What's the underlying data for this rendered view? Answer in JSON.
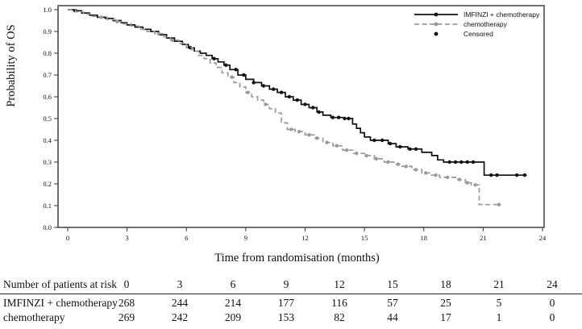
{
  "chart_data": {
    "type": "line",
    "subtype": "kaplan-meier-step",
    "title": "",
    "xlabel": "Time from randomisation (months)",
    "ylabel": "Probability of OS",
    "xlim": [
      0,
      24
    ],
    "ylim": [
      0.0,
      1.0
    ],
    "x_ticks": [
      0,
      3,
      6,
      9,
      12,
      15,
      18,
      21,
      24
    ],
    "y_ticks": [
      0.0,
      0.1,
      0.2,
      0.3,
      0.4,
      0.5,
      0.6,
      0.7,
      0.8,
      0.9,
      1.0
    ],
    "grid": false,
    "legend_position": "top-right-inside",
    "colors": {
      "imfinzi": "#111111",
      "chemo": "#999999",
      "frame": "#4d4d4d"
    },
    "series": [
      {
        "name": "IMFINZI + chemotherapy",
        "style": "solid",
        "color": "#111111",
        "points": [
          [
            0,
            1.0
          ],
          [
            0.3,
            0.995
          ],
          [
            0.7,
            0.985
          ],
          [
            1.1,
            0.975
          ],
          [
            1.5,
            0.965
          ],
          [
            1.9,
            0.96
          ],
          [
            2.3,
            0.95
          ],
          [
            2.7,
            0.94
          ],
          [
            3.0,
            0.93
          ],
          [
            3.4,
            0.92
          ],
          [
            3.8,
            0.91
          ],
          [
            4.2,
            0.9
          ],
          [
            4.6,
            0.885
          ],
          [
            5.0,
            0.87
          ],
          [
            5.4,
            0.855
          ],
          [
            5.8,
            0.84
          ],
          [
            6.1,
            0.825
          ],
          [
            6.4,
            0.81
          ],
          [
            6.7,
            0.8
          ],
          [
            7.0,
            0.79
          ],
          [
            7.3,
            0.775
          ],
          [
            7.6,
            0.76
          ],
          [
            7.9,
            0.745
          ],
          [
            8.2,
            0.725
          ],
          [
            8.6,
            0.7
          ],
          [
            9.0,
            0.68
          ],
          [
            9.4,
            0.665
          ],
          [
            9.8,
            0.65
          ],
          [
            10.2,
            0.635
          ],
          [
            10.6,
            0.62
          ],
          [
            11.0,
            0.6
          ],
          [
            11.4,
            0.585
          ],
          [
            11.8,
            0.565
          ],
          [
            12.2,
            0.55
          ],
          [
            12.6,
            0.53
          ],
          [
            12.9,
            0.515
          ],
          [
            13.3,
            0.505
          ],
          [
            14.0,
            0.5
          ],
          [
            14.4,
            0.475
          ],
          [
            14.6,
            0.455
          ],
          [
            14.8,
            0.435
          ],
          [
            15.0,
            0.415
          ],
          [
            15.3,
            0.4
          ],
          [
            16.2,
            0.385
          ],
          [
            16.6,
            0.37
          ],
          [
            17.2,
            0.36
          ],
          [
            17.9,
            0.345
          ],
          [
            18.4,
            0.33
          ],
          [
            18.7,
            0.31
          ],
          [
            19.0,
            0.3
          ],
          [
            21.05,
            0.24
          ],
          [
            23.2,
            0.24
          ]
        ],
        "censored_times": [
          0.4,
          6.2,
          7.4,
          8.0,
          8.5,
          8.9,
          9.4,
          9.9,
          10.4,
          10.8,
          11.2,
          11.6,
          12.0,
          12.4,
          12.7,
          13.4,
          13.7,
          14.0,
          14.2,
          15.5,
          15.9,
          16.3,
          16.8,
          17.3,
          17.6,
          19.3,
          19.6,
          19.9,
          20.2,
          20.5,
          21.4,
          21.7,
          22.7,
          23.1
        ]
      },
      {
        "name": "chemotherapy",
        "style": "dashed",
        "color": "#999999",
        "points": [
          [
            0,
            1.0
          ],
          [
            0.4,
            0.99
          ],
          [
            0.8,
            0.98
          ],
          [
            1.2,
            0.97
          ],
          [
            1.6,
            0.965
          ],
          [
            2.0,
            0.955
          ],
          [
            2.4,
            0.945
          ],
          [
            2.8,
            0.935
          ],
          [
            3.2,
            0.925
          ],
          [
            3.6,
            0.91
          ],
          [
            4.0,
            0.9
          ],
          [
            4.4,
            0.89
          ],
          [
            4.8,
            0.875
          ],
          [
            5.2,
            0.86
          ],
          [
            5.6,
            0.845
          ],
          [
            6.0,
            0.825
          ],
          [
            6.3,
            0.81
          ],
          [
            6.6,
            0.79
          ],
          [
            6.9,
            0.775
          ],
          [
            7.2,
            0.755
          ],
          [
            7.5,
            0.735
          ],
          [
            7.8,
            0.71
          ],
          [
            8.1,
            0.69
          ],
          [
            8.4,
            0.665
          ],
          [
            8.7,
            0.645
          ],
          [
            9.0,
            0.62
          ],
          [
            9.3,
            0.6
          ],
          [
            9.6,
            0.585
          ],
          [
            9.9,
            0.565
          ],
          [
            10.2,
            0.545
          ],
          [
            10.5,
            0.525
          ],
          [
            10.8,
            0.48
          ],
          [
            11.1,
            0.45
          ],
          [
            11.5,
            0.44
          ],
          [
            12.0,
            0.425
          ],
          [
            12.5,
            0.41
          ],
          [
            12.9,
            0.39
          ],
          [
            13.4,
            0.375
          ],
          [
            13.9,
            0.355
          ],
          [
            14.4,
            0.34
          ],
          [
            15.0,
            0.33
          ],
          [
            15.5,
            0.315
          ],
          [
            16.0,
            0.3
          ],
          [
            16.5,
            0.29
          ],
          [
            16.9,
            0.28
          ],
          [
            17.4,
            0.265
          ],
          [
            17.9,
            0.25
          ],
          [
            18.3,
            0.24
          ],
          [
            18.8,
            0.23
          ],
          [
            19.6,
            0.22
          ],
          [
            20.1,
            0.205
          ],
          [
            20.4,
            0.195
          ],
          [
            20.8,
            0.105
          ],
          [
            21.9,
            0.105
          ]
        ],
        "censored_times": [
          1.7,
          2.5,
          4.6,
          5.3,
          8.3,
          9.1,
          10.0,
          11.3,
          11.7,
          12.2,
          12.6,
          13.1,
          13.6,
          14.1,
          14.6,
          15.1,
          15.6,
          16.2,
          16.7,
          17.1,
          17.6,
          18.1,
          18.6,
          19.2,
          19.8,
          20.2,
          20.6,
          21.8
        ]
      }
    ],
    "legend": {
      "items": [
        {
          "label": "IMFINZI + chemotherapy",
          "swatch": "solid-line-dot",
          "color": "#111111"
        },
        {
          "label": "chemotherapy",
          "swatch": "dashed-line-dot",
          "color": "#999999"
        },
        {
          "label": "Censored",
          "swatch": "dot",
          "color": "#111111"
        }
      ]
    }
  },
  "risk_table": {
    "header_label": "Number of patients at risk",
    "time_points": [
      "0",
      "3",
      "6",
      "9",
      "12",
      "15",
      "18",
      "21",
      "24"
    ],
    "rows": [
      {
        "label": "IMFINZI + chemotherapy",
        "values": [
          "268",
          "244",
          "214",
          "177",
          "116",
          "57",
          "25",
          "5",
          "0"
        ]
      },
      {
        "label": "chemotherapy",
        "values": [
          "269",
          "242",
          "209",
          "153",
          "82",
          "44",
          "17",
          "1",
          "0"
        ]
      }
    ]
  }
}
